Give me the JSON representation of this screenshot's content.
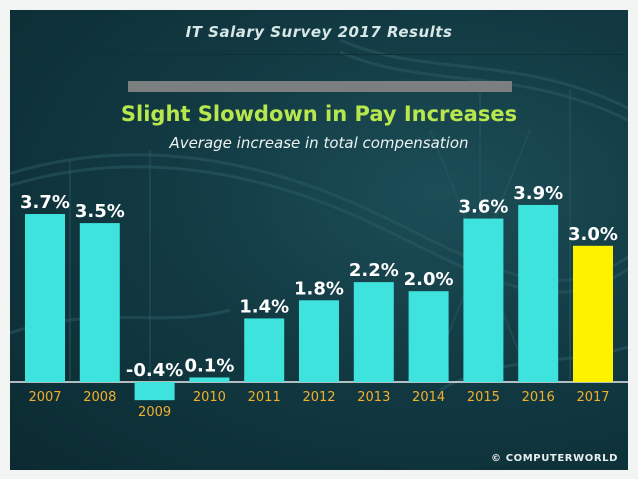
{
  "header": {
    "title": "IT Salary Survey 2017 Results"
  },
  "credit": "© COMPUTERWORLD",
  "colors": {
    "bar": "#3de3dc",
    "highlight": "#fff200",
    "axis": "#e8ecec",
    "axis_label": "#f3b02d",
    "value_label": "#ffffff"
  },
  "chart_data": {
    "type": "bar",
    "title": "Slight Slowdown in Pay Increases",
    "subtitle": "Average increase in total compensation",
    "xlabel": "",
    "ylabel": "",
    "grid": false,
    "ylim": [
      -0.4,
      3.9
    ],
    "highlight_category": "2017",
    "categories": [
      "2007",
      "2008",
      "2009",
      "2010",
      "2011",
      "2012",
      "2013",
      "2014",
      "2015",
      "2016",
      "2017"
    ],
    "values": [
      3.7,
      3.5,
      -0.4,
      0.1,
      1.4,
      1.8,
      2.2,
      2.0,
      3.6,
      3.9,
      3.0
    ],
    "value_labels": [
      "3.7%",
      "3.5%",
      "-0.4%",
      "0.1%",
      "1.4%",
      "1.8%",
      "2.2%",
      "2.0%",
      "3.6%",
      "3.9%",
      "3.0%"
    ]
  }
}
